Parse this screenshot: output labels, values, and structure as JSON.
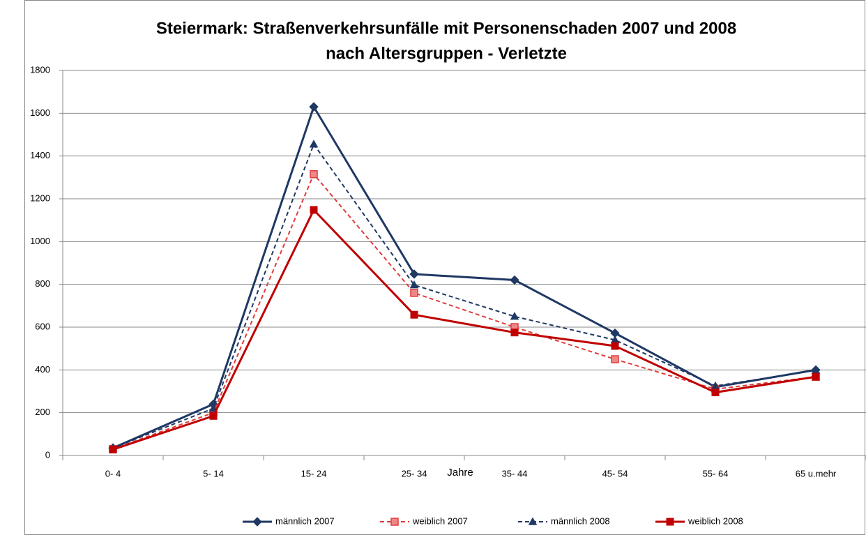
{
  "chart_data": {
    "type": "line",
    "title": [
      "Steiermark: Straßenverkehrsunfälle mit Personenschaden 2007 und 2008",
      "nach Altersgruppen - Verletzte"
    ],
    "x_label": "Jahre",
    "categories": [
      "0- 4",
      "5- 14",
      "15- 24",
      "25- 34",
      "35- 44",
      "45- 54",
      "55- 64",
      "65 u.mehr"
    ],
    "series": [
      {
        "name": "männlich 2007",
        "color": "#1f3864",
        "dashed": false,
        "marker": "diamond",
        "values": [
          35,
          240,
          1630,
          848,
          820,
          572,
          320,
          400
        ]
      },
      {
        "name": "weiblich 2007",
        "color": "#e03c3c",
        "dashed": true,
        "marker": "square",
        "values": [
          30,
          200,
          1315,
          760,
          600,
          450,
          310,
          368
        ]
      },
      {
        "name": "männlich 2008",
        "color": "#1f3864",
        "dashed": true,
        "marker": "triangle",
        "values": [
          35,
          220,
          1455,
          797,
          650,
          540,
          325,
          398
        ]
      },
      {
        "name": "weiblich 2008",
        "color": "#c00000",
        "dashed": false,
        "marker": "square",
        "values": [
          28,
          185,
          1148,
          658,
          575,
          512,
          295,
          368
        ]
      }
    ],
    "ylim": [
      0,
      1800
    ],
    "yticks": [
      0,
      200,
      400,
      600,
      800,
      1000,
      1200,
      1400,
      1600,
      1800
    ],
    "grid": true,
    "legend": "bottom"
  }
}
